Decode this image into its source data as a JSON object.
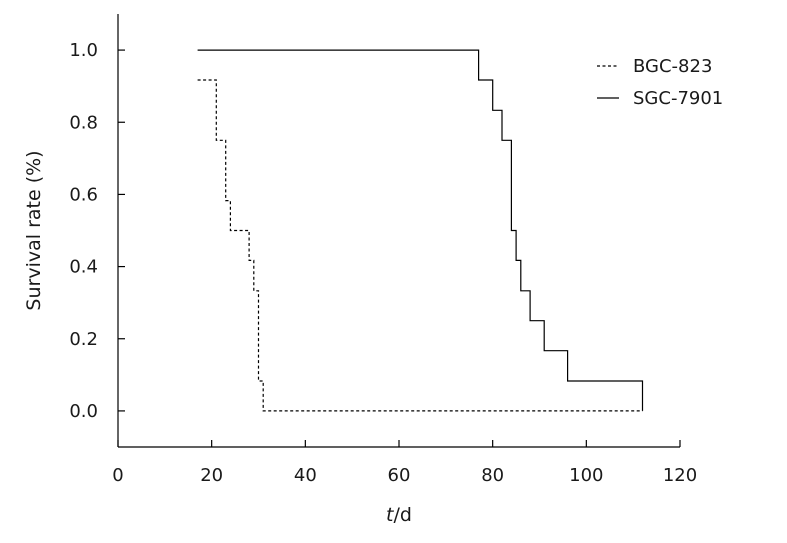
{
  "chart_data": {
    "type": "line",
    "step": true,
    "xlabel": {
      "italic": "t",
      "rest": "/d"
    },
    "ylabel": "Survival rate (%)",
    "xlim": [
      0,
      120
    ],
    "ylim": [
      -0.1,
      1.1
    ],
    "xticks": [
      "0",
      "20",
      "40",
      "60",
      "80",
      "100",
      "120"
    ],
    "yticks": [
      "0.0",
      "0.2",
      "0.4",
      "0.6",
      "0.8",
      "1.0"
    ],
    "grid": false,
    "legend_position": "top-right",
    "series": [
      {
        "name": "BGC-823",
        "style": "dashed",
        "color": "#000000",
        "points": [
          [
            17,
            0.917
          ],
          [
            21,
            0.917
          ],
          [
            21,
            0.75
          ],
          [
            23,
            0.75
          ],
          [
            23,
            0.583
          ],
          [
            24,
            0.583
          ],
          [
            24,
            0.5
          ],
          [
            28,
            0.5
          ],
          [
            28,
            0.417
          ],
          [
            29,
            0.417
          ],
          [
            29,
            0.333
          ],
          [
            30,
            0.333
          ],
          [
            30,
            0.083
          ],
          [
            31,
            0.083
          ],
          [
            31,
            0.0
          ],
          [
            112,
            0.0
          ]
        ]
      },
      {
        "name": "SGC-7901",
        "style": "solid",
        "color": "#000000",
        "points": [
          [
            17,
            1.0
          ],
          [
            77,
            1.0
          ],
          [
            77,
            0.917
          ],
          [
            80,
            0.917
          ],
          [
            80,
            0.833
          ],
          [
            82,
            0.833
          ],
          [
            82,
            0.75
          ],
          [
            84,
            0.75
          ],
          [
            84,
            0.5
          ],
          [
            85,
            0.5
          ],
          [
            85,
            0.417
          ],
          [
            86,
            0.417
          ],
          [
            86,
            0.333
          ],
          [
            88,
            0.333
          ],
          [
            88,
            0.25
          ],
          [
            91,
            0.25
          ],
          [
            91,
            0.167
          ],
          [
            96,
            0.167
          ],
          [
            96,
            0.083
          ],
          [
            112,
            0.083
          ],
          [
            112,
            0.0
          ]
        ]
      }
    ]
  }
}
